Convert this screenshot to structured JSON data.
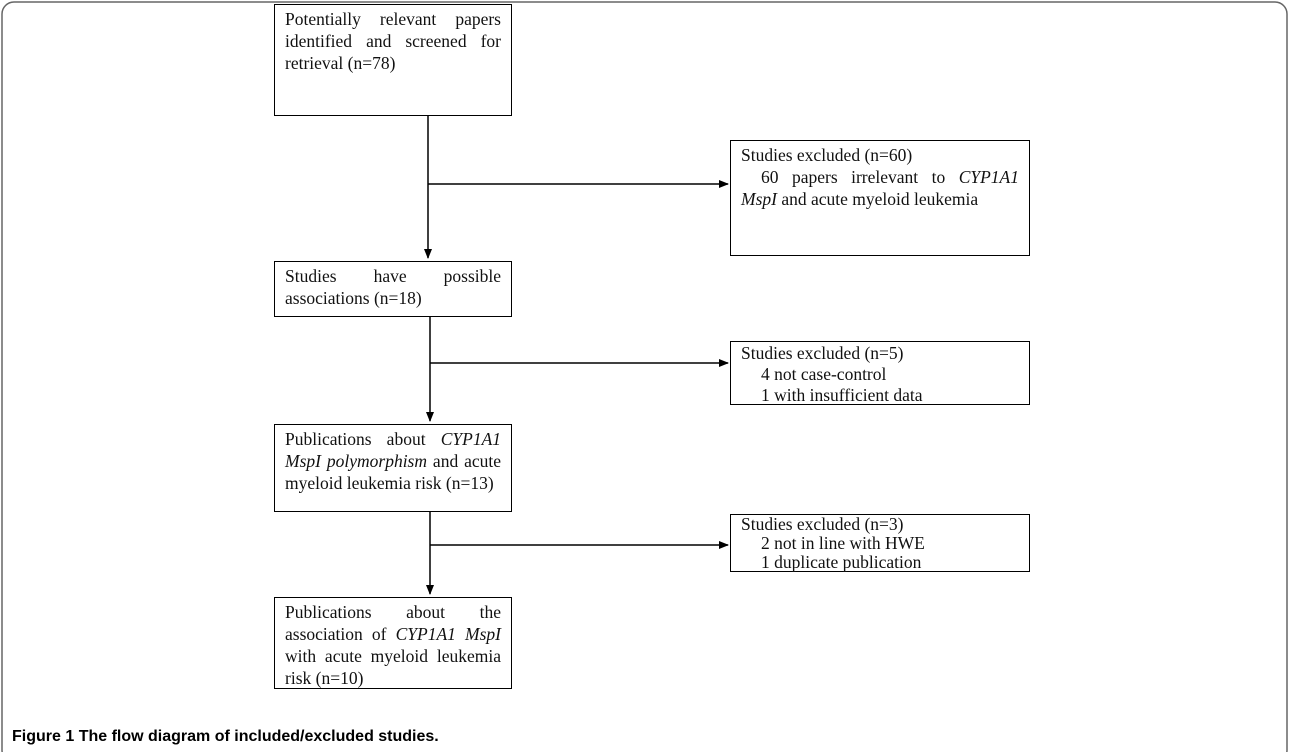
{
  "boxes": [
    {
      "parts": [
        "Potentially relevant papers identified and screened for retrieval (n=78)"
      ]
    },
    {
      "title": "Studies excluded (n=60)",
      "parts": [
        "60 papers irrelevant to",
        "CYP1A1 MspI",
        "and acute myeloid leukemia"
      ]
    },
    {
      "parts": [
        "Studies have possible associations (n=18)"
      ]
    },
    {
      "title": "Studies excluded (n=5)",
      "lines": [
        "4 not case-control",
        "1 with insufficient data"
      ]
    },
    {
      "parts": [
        "Publications about",
        "CYP1A1 MspI polymorphism",
        "and acute myeloid leukemia risk (n=13)"
      ]
    },
    {
      "title": "Studies excluded (n=3)",
      "lines": [
        "2 not in line with HWE",
        "1 duplicate publication"
      ]
    },
    {
      "parts": [
        "Publications about the association of",
        "CYP1A1 MspI",
        "with acute myeloid leukemia risk (n=10)"
      ]
    }
  ],
  "caption": {
    "label": "Figure 1",
    "text": "The flow diagram of included/excluded studies."
  }
}
